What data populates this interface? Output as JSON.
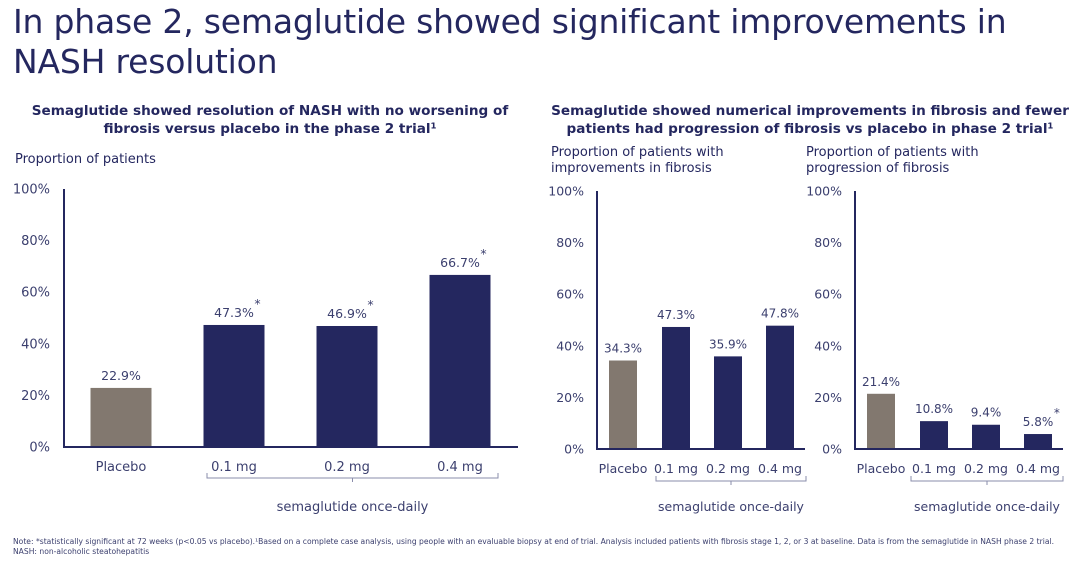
{
  "page": {
    "title": "In phase 2, semaglutide showed significant improvements in NASH resolution"
  },
  "colors": {
    "navy": "#24275f",
    "placebo": "#82786f",
    "text": "#24275f"
  },
  "chart_data": [
    {
      "id": "nash-resolution",
      "type": "bar",
      "title": "Semaglutide showed resolution of NASH with no worsening of fibrosis versus placebo in the phase 2 trial¹",
      "ylabel": "Proportion of patients",
      "xlabel": "",
      "ylim": [
        0,
        100
      ],
      "yticks": [
        "0%",
        "20%",
        "40%",
        "60%",
        "80%",
        "100%"
      ],
      "categories": [
        "Placebo",
        "0.1 mg",
        "0.2 mg",
        "0.4 mg"
      ],
      "values": [
        22.9,
        47.3,
        46.9,
        66.7
      ],
      "labels": [
        "22.9%",
        "47.3%",
        "46.9%",
        "66.7%"
      ],
      "significant": [
        false,
        true,
        true,
        true
      ],
      "group_bracket": "semaglutide once-daily",
      "grid": false
    },
    {
      "id": "fibrosis-improvement",
      "type": "bar",
      "title": "Semaglutide showed numerical improvements in fibrosis and fewer patients had progression of fibrosis vs placebo in phase 2 trial¹",
      "ylabel": "Proportion of patients with improvements in fibrosis",
      "xlabel": "",
      "ylim": [
        0,
        100
      ],
      "yticks": [
        "0%",
        "20%",
        "40%",
        "60%",
        "80%",
        "100%"
      ],
      "categories": [
        "Placebo",
        "0.1 mg",
        "0.2 mg",
        "0.4 mg"
      ],
      "values": [
        34.3,
        47.3,
        35.9,
        47.8
      ],
      "labels": [
        "34.3%",
        "47.3%",
        "35.9%",
        "47.8%"
      ],
      "significant": [
        false,
        false,
        false,
        false
      ],
      "group_bracket": "semaglutide once-daily",
      "grid": false
    },
    {
      "id": "fibrosis-progression",
      "type": "bar",
      "title": "",
      "ylabel": "Proportion of patients with progression of fibrosis",
      "xlabel": "",
      "ylim": [
        0,
        100
      ],
      "yticks": [
        "0%",
        "20%",
        "40%",
        "60%",
        "80%",
        "100%"
      ],
      "categories": [
        "Placebo",
        "0.1 mg",
        "0.2 mg",
        "0.4 mg"
      ],
      "values": [
        21.4,
        10.8,
        9.4,
        5.8
      ],
      "labels": [
        "21.4%",
        "10.8%",
        "9.4%",
        "5.8%"
      ],
      "significant": [
        false,
        false,
        false,
        true
      ],
      "group_bracket": "semaglutide once-daily",
      "grid": false
    }
  ],
  "subheads": {
    "left": "Semaglutide showed resolution of NASH with no worsening of fibrosis versus placebo in the phase 2 trial¹",
    "right": "Semaglutide showed numerical improvements in fibrosis and fewer patients had progression of fibrosis vs placebo in phase 2 trial¹"
  },
  "ylabels": {
    "left": "Proportion of patients",
    "middle_line1": "Proportion of patients with",
    "middle_line2": "improvements in fibrosis",
    "right_line1": "Proportion of patients with",
    "right_line2": "progression of fibrosis"
  },
  "significance_marker": "*",
  "footnote": {
    "note": "Note: *statistically significant at 72 weeks (p<0.05 vs placebo).¹Based on a complete case analysis, using people with an evaluable biopsy at end of trial. Analysis included patients with fibrosis stage 1, 2, or 3 at baseline. Data is from the semaglutide in NASH phase 2 trial.",
    "abbreviation": "NASH: non-alcoholic steatohepatitis"
  }
}
